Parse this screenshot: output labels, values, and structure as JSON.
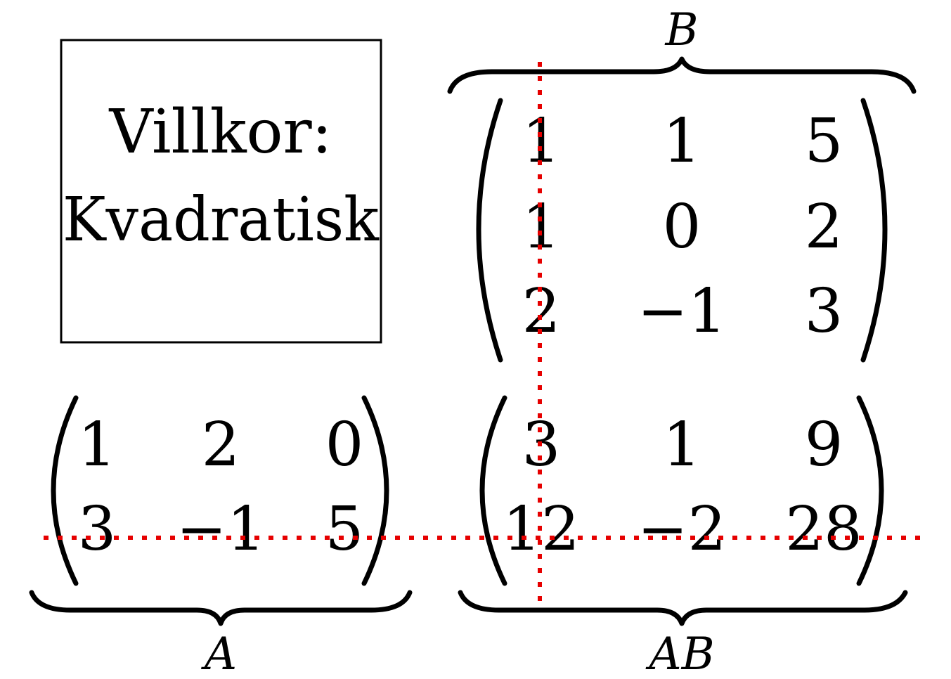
{
  "conditions_box": {
    "title": "Villkor:",
    "condition": "Kvadratisk"
  },
  "matrices": {
    "A": {
      "label": "A",
      "rows": [
        [
          "1",
          "2",
          "0"
        ],
        [
          "3",
          "−1",
          "5"
        ]
      ]
    },
    "B": {
      "label": "B",
      "rows": [
        [
          "1",
          "1",
          "5"
        ],
        [
          "1",
          "0",
          "2"
        ],
        [
          "2",
          "−1",
          "3"
        ]
      ]
    },
    "AB": {
      "label": "AB",
      "rows": [
        [
          "3",
          "1",
          "9"
        ],
        [
          "12",
          "−2",
          "28"
        ]
      ]
    }
  },
  "guide_color": "#e60000"
}
